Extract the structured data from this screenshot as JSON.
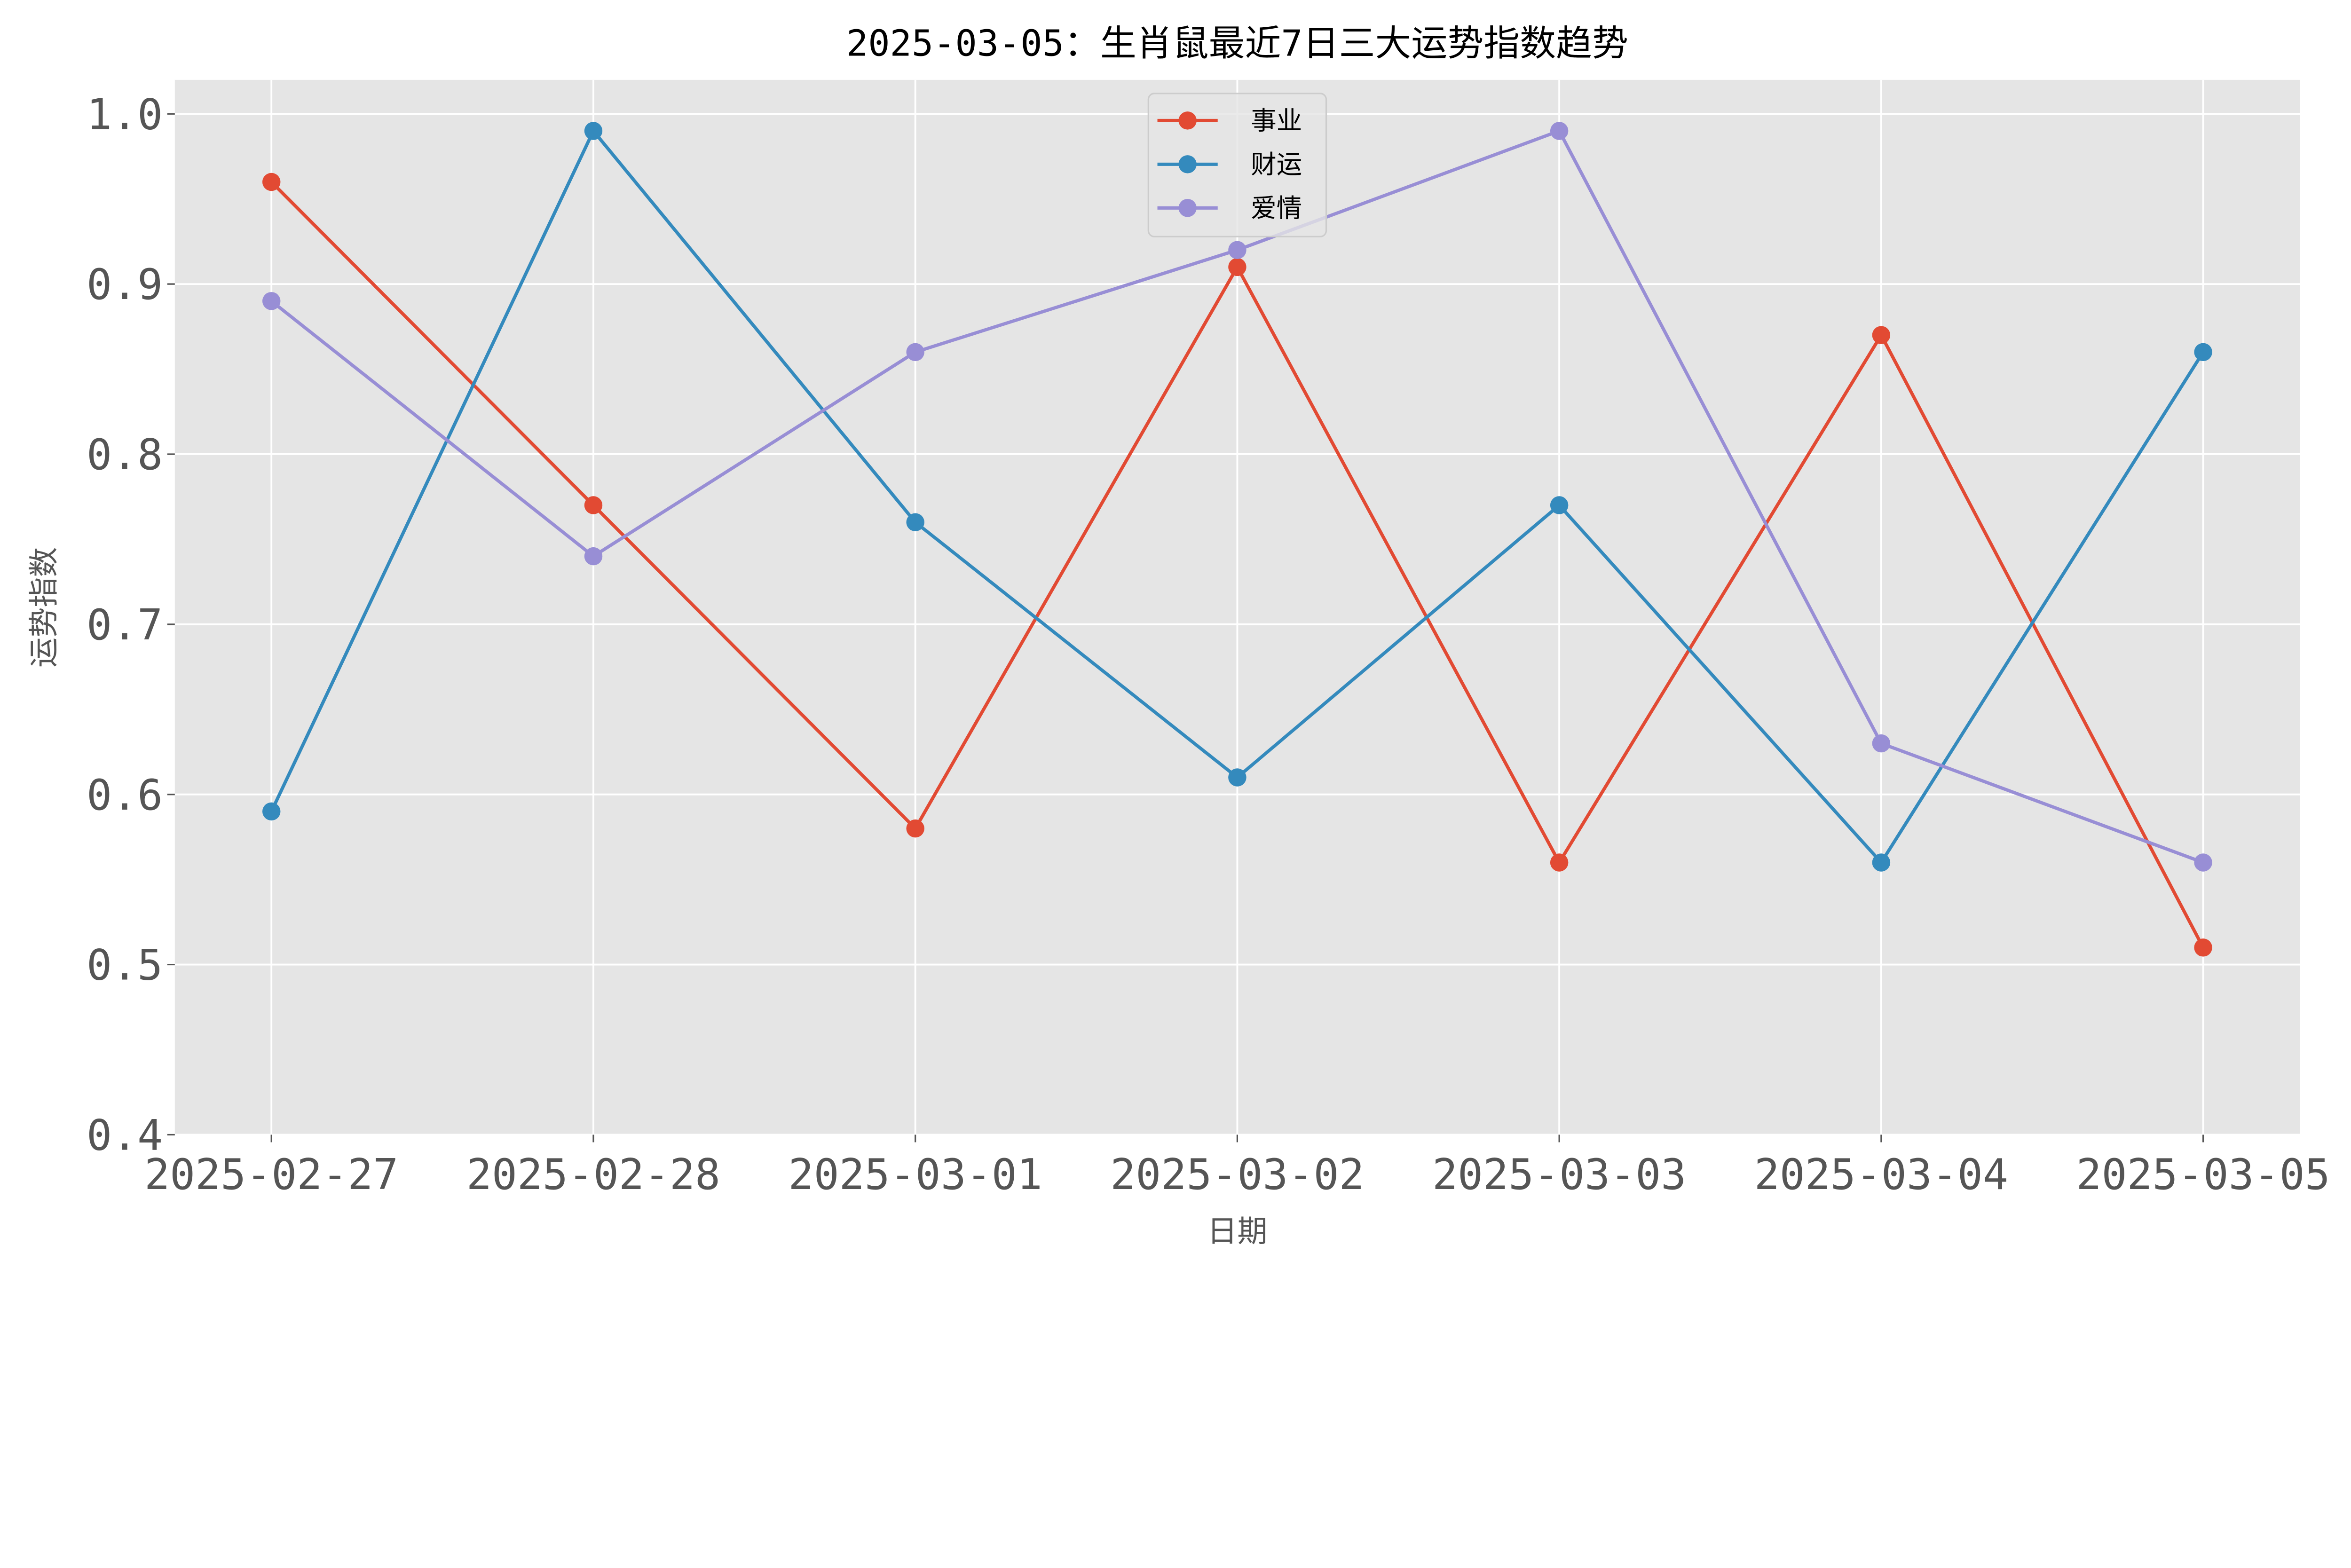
{
  "chart_data": {
    "type": "line",
    "title": "2025-03-05：生肖鼠最近7日三大运势指数趋势",
    "xlabel": "日期",
    "ylabel": "运势指数",
    "categories": [
      "2025-02-27",
      "2025-02-28",
      "2025-03-01",
      "2025-03-02",
      "2025-03-03",
      "2025-03-04",
      "2025-03-05"
    ],
    "ylim": [
      0.4,
      1.02
    ],
    "yticks": [
      "0.4",
      "0.5",
      "0.6",
      "0.7",
      "0.8",
      "0.9",
      "1.0"
    ],
    "grid": true,
    "legend_position": "upper-center",
    "style": "ggplot",
    "series": [
      {
        "name": "事业",
        "color": "#E24A33",
        "values": [
          0.96,
          0.77,
          0.58,
          0.91,
          0.56,
          0.87,
          0.51
        ]
      },
      {
        "name": "财运",
        "color": "#348ABD",
        "values": [
          0.59,
          0.99,
          0.76,
          0.61,
          0.77,
          0.56,
          0.86
        ]
      },
      {
        "name": "爱情",
        "color": "#988ED5",
        "values": [
          0.89,
          0.74,
          0.86,
          0.92,
          0.99,
          0.63,
          0.56
        ]
      }
    ]
  }
}
